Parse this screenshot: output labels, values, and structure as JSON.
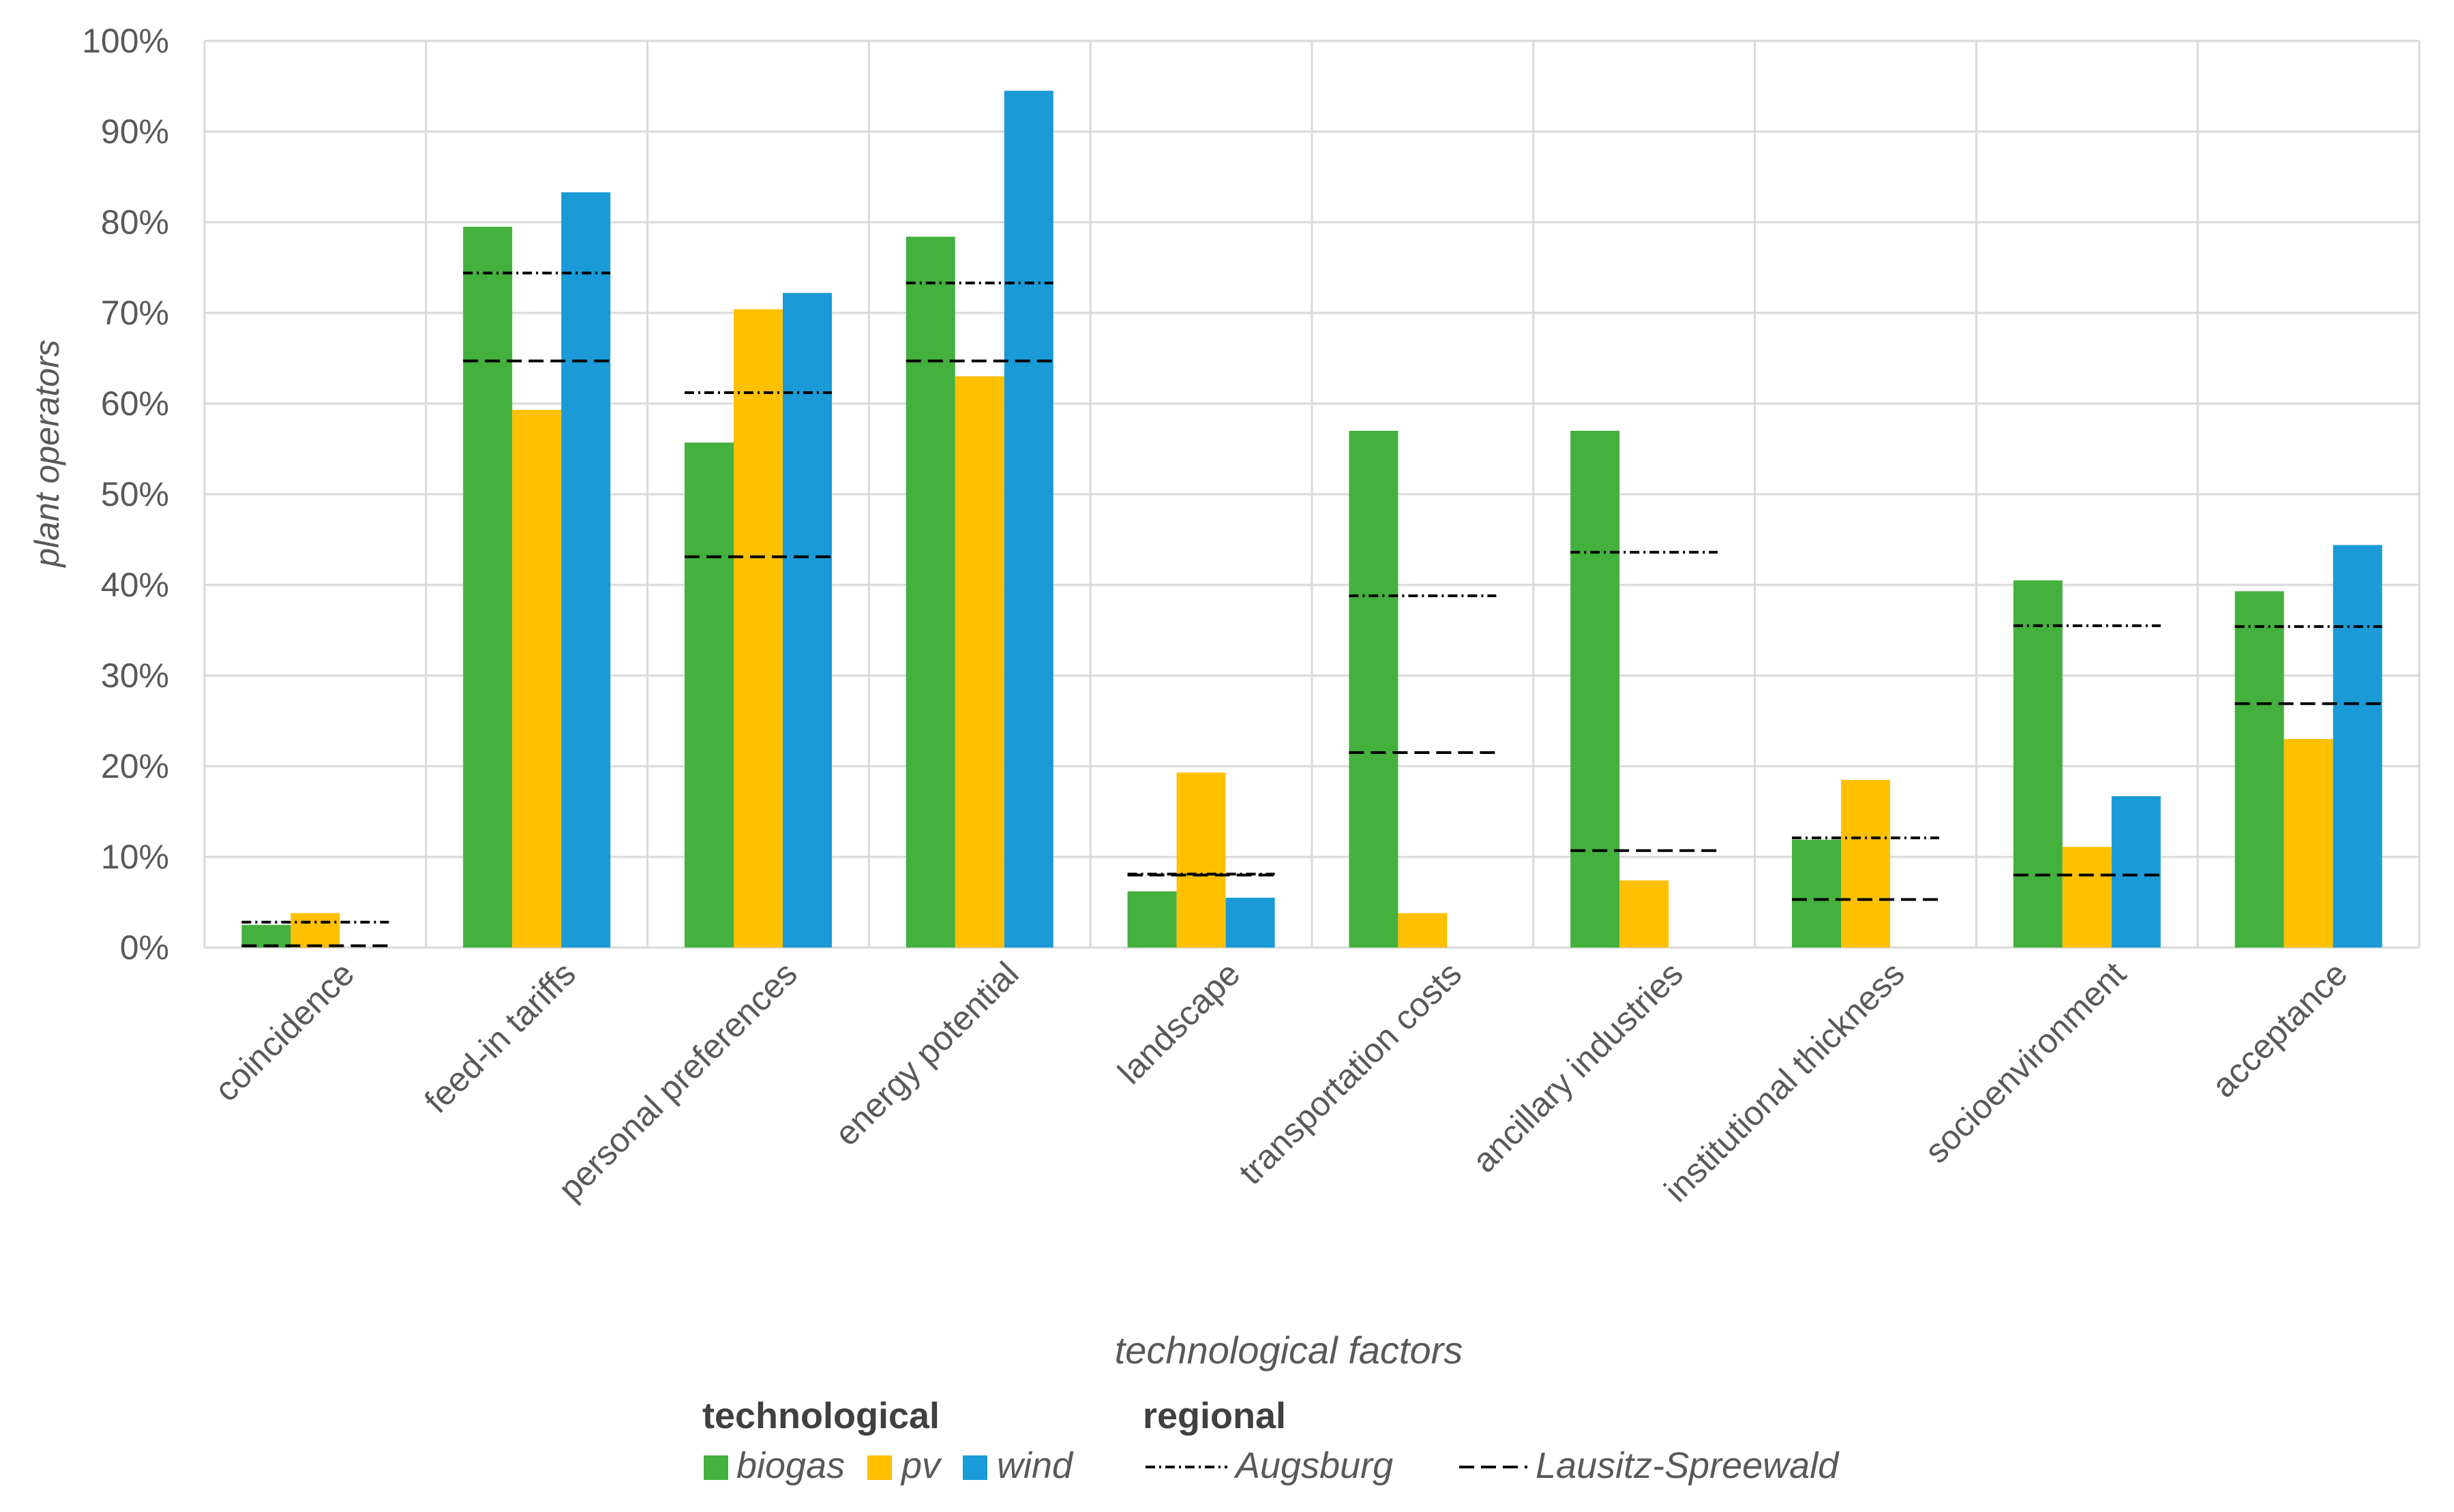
{
  "chart_data": {
    "type": "bar",
    "title": "",
    "xlabel": "technological factors",
    "ylabel": "plant operators",
    "ylim": [
      0,
      100
    ],
    "y_ticks": [
      "0%",
      "10%",
      "20%",
      "30%",
      "40%",
      "50%",
      "60%",
      "70%",
      "80%",
      "90%",
      "100%"
    ],
    "categories": [
      "coincidence",
      "feed-in tariffs",
      "personal preferences",
      "energy potential",
      "landscape",
      "transportation costs",
      "ancillary industries",
      "institutional thickness",
      "socioenvironment",
      "acceptance"
    ],
    "series": [
      {
        "name": "biogas",
        "color": "#44B03E",
        "values": [
          2.5,
          79.5,
          55.7,
          78.4,
          6.2,
          57.0,
          57.0,
          11.9,
          40.5,
          39.3
        ]
      },
      {
        "name": "pv",
        "color": "#FFC000",
        "values": [
          3.8,
          59.3,
          70.4,
          63.0,
          19.3,
          3.8,
          7.4,
          18.5,
          11.1,
          23.0
        ]
      },
      {
        "name": "wind",
        "color": "#1A9BD7",
        "values": [
          0,
          83.3,
          72.2,
          94.5,
          5.5,
          0,
          0,
          0,
          16.7,
          44.4
        ]
      }
    ],
    "reference_lines": [
      {
        "name": "Augsburg",
        "style": "dash-dot",
        "values": [
          2.8,
          74.4,
          61.2,
          73.3,
          8.1,
          38.8,
          43.6,
          12.1,
          35.5,
          35.4
        ]
      },
      {
        "name": "Lausitz-Spreewald",
        "style": "dash",
        "values": [
          0.2,
          64.7,
          43.1,
          64.7,
          8.0,
          21.5,
          10.7,
          5.3,
          8.0,
          26.9
        ]
      }
    ],
    "grid": true,
    "legend": {
      "position": "bottom",
      "technological_title": "technological",
      "regional_title": "regional",
      "technological_items": [
        "biogas",
        "pv",
        "wind"
      ],
      "regional_items": [
        "Augsburg",
        "Lausitz-Spreewald"
      ]
    }
  }
}
